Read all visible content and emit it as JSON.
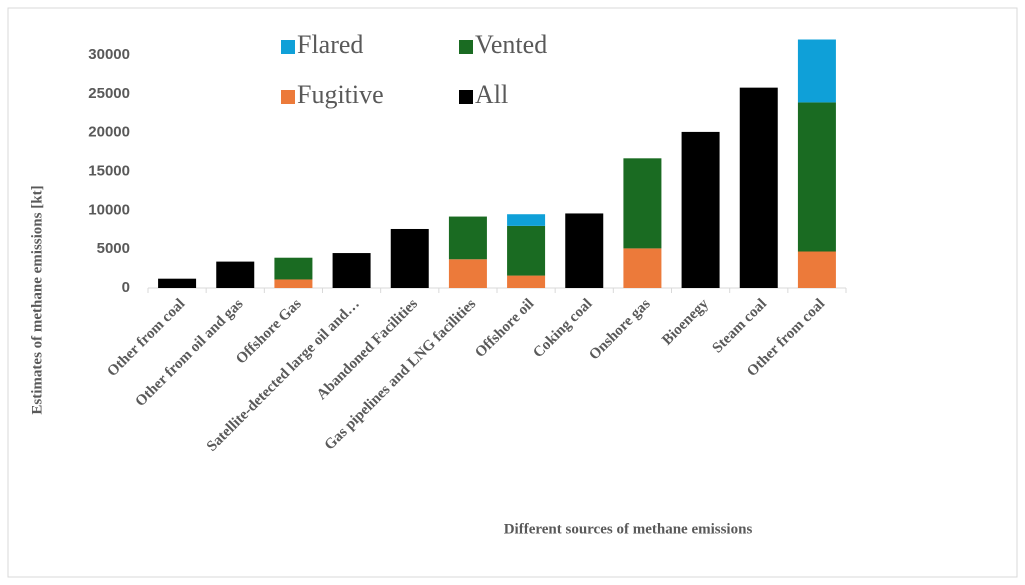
{
  "chart_data": {
    "type": "stacked_bar",
    "categories": [
      "Other from coal",
      "Other from oil and gas",
      "Offshore Gas",
      "Satellite-detected large oil and…",
      "Abandoned Facilities",
      "Gas pipelines and LNG facilities",
      "Offshore oil",
      "Coking coal",
      "Onshore gas",
      "Bioenegy",
      "Steam coal",
      "Other from coal"
    ],
    "series": [
      {
        "name": "Flared",
        "color": "#0fa0d8",
        "values": [
          null,
          null,
          null,
          null,
          null,
          null,
          1500,
          null,
          null,
          null,
          null,
          8100
        ]
      },
      {
        "name": "Vented",
        "color": "#1a6b22",
        "values": [
          null,
          null,
          2800,
          null,
          null,
          5500,
          6400,
          null,
          11600,
          null,
          null,
          19200
        ]
      },
      {
        "name": "Fugitive",
        "color": "#ec7a3a",
        "values": [
          null,
          null,
          1100,
          null,
          null,
          3700,
          1600,
          null,
          5100,
          null,
          null,
          4700
        ]
      },
      {
        "name": "All",
        "color": "#000000",
        "values": [
          1200,
          3400,
          null,
          4500,
          7600,
          null,
          null,
          9600,
          null,
          20100,
          25800,
          null
        ]
      }
    ],
    "xlabel": "Different sources of methane emissions",
    "ylabel": "Estimates of methane emissions [kt]",
    "ylim": [
      0,
      32000
    ],
    "yticks": [
      0,
      5000,
      10000,
      15000,
      20000,
      25000,
      30000
    ],
    "grid": false,
    "legend": "top"
  }
}
